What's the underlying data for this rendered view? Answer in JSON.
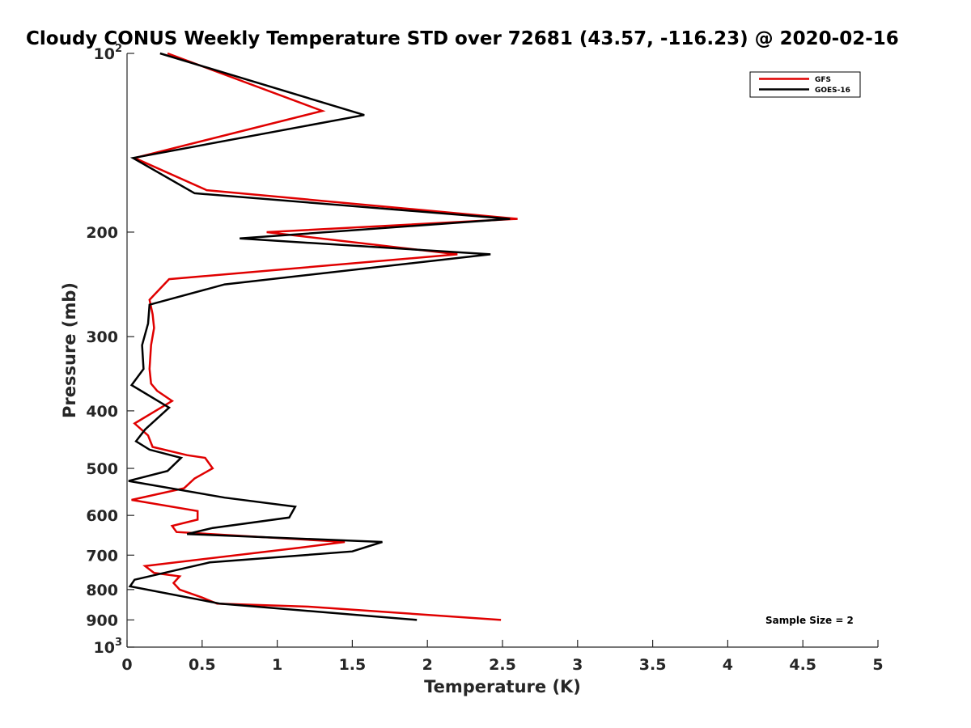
{
  "chart_data": {
    "type": "line",
    "title": "Cloudy CONUS Weekly Temperature STD over 72681 (43.57, -116.23) @ 2020-02-16",
    "xlabel": "Temperature (K)",
    "ylabel": "Pressure (mb)",
    "xlim": [
      0,
      5
    ],
    "ylim": [
      100,
      1000
    ],
    "y_scale": "log",
    "y_reversed": true,
    "grid": false,
    "legend_position": "top-right",
    "x_tick_labels": [
      "0",
      "0.5",
      "1",
      "1.5",
      "2",
      "2.5",
      "3",
      "3.5",
      "4",
      "4.5",
      "5"
    ],
    "y_ticks": [
      {
        "value": 100,
        "label": "10",
        "exp": "2"
      },
      {
        "value": 200,
        "label": "200"
      },
      {
        "value": 300,
        "label": "300"
      },
      {
        "value": 400,
        "label": "400"
      },
      {
        "value": 500,
        "label": "500"
      },
      {
        "value": 600,
        "label": "600"
      },
      {
        "value": 700,
        "label": "700"
      },
      {
        "value": 800,
        "label": "800"
      },
      {
        "value": 900,
        "label": "900"
      },
      {
        "value": 1000,
        "label": "10",
        "exp": "3"
      }
    ],
    "annotation": "Sample Size = 2",
    "series": [
      {
        "name": "GFS",
        "color": "#e00000",
        "points": [
          [
            0.27,
            100
          ],
          [
            1.3,
            125
          ],
          [
            0.05,
            150
          ],
          [
            0.53,
            170
          ],
          [
            2.6,
            190
          ],
          [
            0.93,
            200
          ],
          [
            2.2,
            218
          ],
          [
            0.28,
            240
          ],
          [
            0.15,
            260
          ],
          [
            0.17,
            275
          ],
          [
            0.18,
            290
          ],
          [
            0.16,
            310
          ],
          [
            0.15,
            340
          ],
          [
            0.16,
            360
          ],
          [
            0.2,
            370
          ],
          [
            0.3,
            385
          ],
          [
            0.05,
            420
          ],
          [
            0.14,
            440
          ],
          [
            0.17,
            460
          ],
          [
            0.4,
            475
          ],
          [
            0.52,
            480
          ],
          [
            0.57,
            500
          ],
          [
            0.45,
            520
          ],
          [
            0.38,
            540
          ],
          [
            0.03,
            565
          ],
          [
            0.47,
            590
          ],
          [
            0.47,
            610
          ],
          [
            0.3,
            625
          ],
          [
            0.33,
            640
          ],
          [
            1.45,
            665
          ],
          [
            1.15,
            680
          ],
          [
            0.12,
            730
          ],
          [
            0.18,
            750
          ],
          [
            0.35,
            760
          ],
          [
            0.31,
            780
          ],
          [
            0.35,
            800
          ],
          [
            0.5,
            825
          ],
          [
            0.6,
            845
          ],
          [
            1.22,
            855
          ],
          [
            2.49,
            900
          ]
        ]
      },
      {
        "name": "GOES-16",
        "color": "#000000",
        "points": [
          [
            0.22,
            100
          ],
          [
            1.58,
            127
          ],
          [
            0.04,
            150
          ],
          [
            0.45,
            172
          ],
          [
            2.55,
            190
          ],
          [
            0.75,
            205
          ],
          [
            2.42,
            218
          ],
          [
            0.65,
            245
          ],
          [
            0.15,
            265
          ],
          [
            0.14,
            285
          ],
          [
            0.1,
            310
          ],
          [
            0.11,
            340
          ],
          [
            0.03,
            362
          ],
          [
            0.28,
            395
          ],
          [
            0.12,
            430
          ],
          [
            0.06,
            450
          ],
          [
            0.15,
            465
          ],
          [
            0.36,
            480
          ],
          [
            0.27,
            505
          ],
          [
            0.01,
            525
          ],
          [
            0.65,
            560
          ],
          [
            1.12,
            580
          ],
          [
            1.08,
            605
          ],
          [
            0.57,
            630
          ],
          [
            0.4,
            645
          ],
          [
            1.7,
            665
          ],
          [
            1.5,
            690
          ],
          [
            0.55,
            720
          ],
          [
            0.05,
            770
          ],
          [
            0.02,
            790
          ],
          [
            0.62,
            845
          ],
          [
            1.93,
            900
          ]
        ]
      }
    ]
  }
}
